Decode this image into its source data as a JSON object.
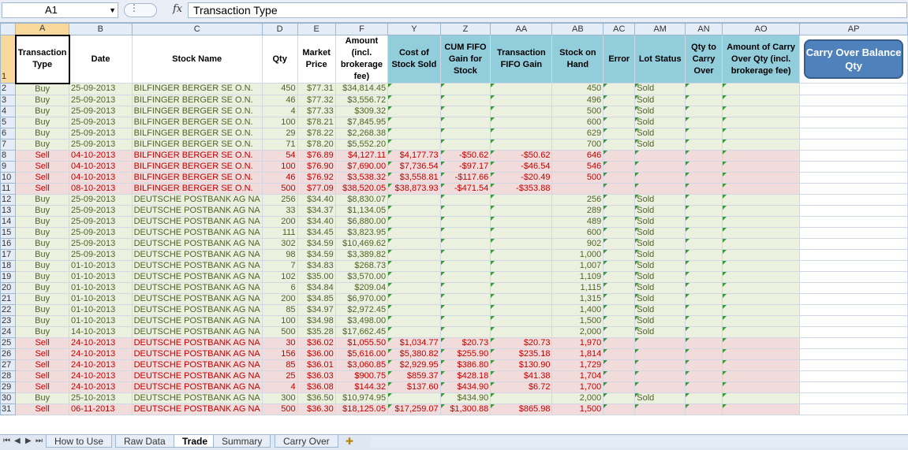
{
  "formula_bar": {
    "cell_ref": "A1",
    "fx": "fx",
    "formula": "Transaction Type"
  },
  "columns": [
    "A",
    "B",
    "C",
    "D",
    "E",
    "F",
    "Y",
    "Z",
    "AA",
    "AB",
    "AC",
    "AM",
    "AN",
    "AO",
    "AP"
  ],
  "header_row": {
    "row_num": "1",
    "cells": [
      "Transaction Type",
      "Date",
      "Stock Name",
      "Qty",
      "Market Price",
      "Amount (incl. brokerage fee)",
      "Cost of Stock Sold",
      "CUM FIFO Gain for Stock",
      "Transaction FIFO Gain",
      "Stock on Hand",
      "Error",
      "Lot Status",
      "Qty to Carry Over",
      "Amount of Carry Over Qty (incl. brokerage fee)"
    ],
    "button": "Carry Over Balance Qty"
  },
  "rows": [
    {
      "n": "2",
      "t": "Buy",
      "d": "25-09-2013",
      "s": "BILFINGER BERGER SE O.N.",
      "q": "450",
      "p": "$77.31",
      "a": "$34,814.45",
      "cs": "",
      "cum": "",
      "tg": "",
      "oh": "450",
      "l": "Sold"
    },
    {
      "n": "3",
      "t": "Buy",
      "d": "25-09-2013",
      "s": "BILFINGER BERGER SE O.N.",
      "q": "46",
      "p": "$77.32",
      "a": "$3,556.72",
      "cs": "",
      "cum": "",
      "tg": "",
      "oh": "496",
      "l": "Sold"
    },
    {
      "n": "4",
      "t": "Buy",
      "d": "25-09-2013",
      "s": "BILFINGER BERGER SE O.N.",
      "q": "4",
      "p": "$77.33",
      "a": "$309.32",
      "cs": "",
      "cum": "",
      "tg": "",
      "oh": "500",
      "l": "Sold"
    },
    {
      "n": "5",
      "t": "Buy",
      "d": "25-09-2013",
      "s": "BILFINGER BERGER SE O.N.",
      "q": "100",
      "p": "$78.21",
      "a": "$7,845.95",
      "cs": "",
      "cum": "",
      "tg": "",
      "oh": "600",
      "l": "Sold"
    },
    {
      "n": "6",
      "t": "Buy",
      "d": "25-09-2013",
      "s": "BILFINGER BERGER SE O.N.",
      "q": "29",
      "p": "$78.22",
      "a": "$2,268.38",
      "cs": "",
      "cum": "",
      "tg": "",
      "oh": "629",
      "l": "Sold"
    },
    {
      "n": "7",
      "t": "Buy",
      "d": "25-09-2013",
      "s": "BILFINGER BERGER SE O.N.",
      "q": "71",
      "p": "$78.20",
      "a": "$5,552.20",
      "cs": "",
      "cum": "",
      "tg": "",
      "oh": "700",
      "l": "Sold"
    },
    {
      "n": "8",
      "t": "Sell",
      "d": "04-10-2013",
      "s": "BILFINGER BERGER SE O.N.",
      "q": "54",
      "p": "$76.89",
      "a": "$4,127.11",
      "cs": "$4,177.73",
      "cum": "-$50.62",
      "tg": "-$50.62",
      "oh": "646",
      "l": ""
    },
    {
      "n": "9",
      "t": "Sell",
      "d": "04-10-2013",
      "s": "BILFINGER BERGER SE O.N.",
      "q": "100",
      "p": "$76.90",
      "a": "$7,690.00",
      "cs": "$7,736.54",
      "cum": "-$97.17",
      "tg": "-$46.54",
      "oh": "546",
      "l": ""
    },
    {
      "n": "10",
      "t": "Sell",
      "d": "04-10-2013",
      "s": "BILFINGER BERGER SE O.N.",
      "q": "46",
      "p": "$76.92",
      "a": "$3,538.32",
      "cs": "$3,558.81",
      "cum": "-$117.66",
      "tg": "-$20.49",
      "oh": "500",
      "l": ""
    },
    {
      "n": "11",
      "t": "Sell",
      "d": "08-10-2013",
      "s": "BILFINGER BERGER SE O.N.",
      "q": "500",
      "p": "$77.09",
      "a": "$38,520.05",
      "cs": "$38,873.93",
      "cum": "-$471.54",
      "tg": "-$353.88",
      "oh": "",
      "l": ""
    },
    {
      "n": "12",
      "t": "Buy",
      "d": "25-09-2013",
      "s": "DEUTSCHE POSTBANK AG NA",
      "q": "256",
      "p": "$34.40",
      "a": "$8,830.07",
      "cs": "",
      "cum": "",
      "tg": "",
      "oh": "256",
      "l": "Sold"
    },
    {
      "n": "13",
      "t": "Buy",
      "d": "25-09-2013",
      "s": "DEUTSCHE POSTBANK AG NA",
      "q": "33",
      "p": "$34.37",
      "a": "$1,134.05",
      "cs": "",
      "cum": "",
      "tg": "",
      "oh": "289",
      "l": "Sold"
    },
    {
      "n": "14",
      "t": "Buy",
      "d": "25-09-2013",
      "s": "DEUTSCHE POSTBANK AG NA",
      "q": "200",
      "p": "$34.40",
      "a": "$6,880.00",
      "cs": "",
      "cum": "",
      "tg": "",
      "oh": "489",
      "l": "Sold"
    },
    {
      "n": "15",
      "t": "Buy",
      "d": "25-09-2013",
      "s": "DEUTSCHE POSTBANK AG NA",
      "q": "111",
      "p": "$34.45",
      "a": "$3,823.95",
      "cs": "",
      "cum": "",
      "tg": "",
      "oh": "600",
      "l": "Sold"
    },
    {
      "n": "16",
      "t": "Buy",
      "d": "25-09-2013",
      "s": "DEUTSCHE POSTBANK AG NA",
      "q": "302",
      "p": "$34.59",
      "a": "$10,469.62",
      "cs": "",
      "cum": "",
      "tg": "",
      "oh": "902",
      "l": "Sold"
    },
    {
      "n": "17",
      "t": "Buy",
      "d": "25-09-2013",
      "s": "DEUTSCHE POSTBANK AG NA",
      "q": "98",
      "p": "$34.59",
      "a": "$3,389.82",
      "cs": "",
      "cum": "",
      "tg": "",
      "oh": "1,000",
      "l": "Sold"
    },
    {
      "n": "18",
      "t": "Buy",
      "d": "01-10-2013",
      "s": "DEUTSCHE POSTBANK AG NA",
      "q": "7",
      "p": "$34.83",
      "a": "$268.73",
      "cs": "",
      "cum": "",
      "tg": "",
      "oh": "1,007",
      "l": "Sold"
    },
    {
      "n": "19",
      "t": "Buy",
      "d": "01-10-2013",
      "s": "DEUTSCHE POSTBANK AG NA",
      "q": "102",
      "p": "$35.00",
      "a": "$3,570.00",
      "cs": "",
      "cum": "",
      "tg": "",
      "oh": "1,109",
      "l": "Sold"
    },
    {
      "n": "20",
      "t": "Buy",
      "d": "01-10-2013",
      "s": "DEUTSCHE POSTBANK AG NA",
      "q": "6",
      "p": "$34.84",
      "a": "$209.04",
      "cs": "",
      "cum": "",
      "tg": "",
      "oh": "1,115",
      "l": "Sold"
    },
    {
      "n": "21",
      "t": "Buy",
      "d": "01-10-2013",
      "s": "DEUTSCHE POSTBANK AG NA",
      "q": "200",
      "p": "$34.85",
      "a": "$6,970.00",
      "cs": "",
      "cum": "",
      "tg": "",
      "oh": "1,315",
      "l": "Sold"
    },
    {
      "n": "22",
      "t": "Buy",
      "d": "01-10-2013",
      "s": "DEUTSCHE POSTBANK AG NA",
      "q": "85",
      "p": "$34.97",
      "a": "$2,972.45",
      "cs": "",
      "cum": "",
      "tg": "",
      "oh": "1,400",
      "l": "Sold"
    },
    {
      "n": "23",
      "t": "Buy",
      "d": "01-10-2013",
      "s": "DEUTSCHE POSTBANK AG NA",
      "q": "100",
      "p": "$34.98",
      "a": "$3,498.00",
      "cs": "",
      "cum": "",
      "tg": "",
      "oh": "1,500",
      "l": "Sold"
    },
    {
      "n": "24",
      "t": "Buy",
      "d": "14-10-2013",
      "s": "DEUTSCHE POSTBANK AG NA",
      "q": "500",
      "p": "$35.28",
      "a": "$17,662.45",
      "cs": "",
      "cum": "",
      "tg": "",
      "oh": "2,000",
      "l": "Sold"
    },
    {
      "n": "25",
      "t": "Sell",
      "d": "24-10-2013",
      "s": "DEUTSCHE POSTBANK AG NA",
      "q": "30",
      "p": "$36.02",
      "a": "$1,055.50",
      "cs": "$1,034.77",
      "cum": "$20.73",
      "tg": "$20.73",
      "oh": "1,970",
      "l": ""
    },
    {
      "n": "26",
      "t": "Sell",
      "d": "24-10-2013",
      "s": "DEUTSCHE POSTBANK AG NA",
      "q": "156",
      "p": "$36.00",
      "a": "$5,616.00",
      "cs": "$5,380.82",
      "cum": "$255.90",
      "tg": "$235.18",
      "oh": "1,814",
      "l": ""
    },
    {
      "n": "27",
      "t": "Sell",
      "d": "24-10-2013",
      "s": "DEUTSCHE POSTBANK AG NA",
      "q": "85",
      "p": "$36.01",
      "a": "$3,060.85",
      "cs": "$2,929.95",
      "cum": "$386.80",
      "tg": "$130.90",
      "oh": "1,729",
      "l": ""
    },
    {
      "n": "28",
      "t": "Sell",
      "d": "24-10-2013",
      "s": "DEUTSCHE POSTBANK AG NA",
      "q": "25",
      "p": "$36.03",
      "a": "$900.75",
      "cs": "$859.37",
      "cum": "$428.18",
      "tg": "$41.38",
      "oh": "1,704",
      "l": ""
    },
    {
      "n": "29",
      "t": "Sell",
      "d": "24-10-2013",
      "s": "DEUTSCHE POSTBANK AG NA",
      "q": "4",
      "p": "$36.08",
      "a": "$144.32",
      "cs": "$137.60",
      "cum": "$434.90",
      "tg": "$6.72",
      "oh": "1,700",
      "l": ""
    },
    {
      "n": "30",
      "t": "Buy",
      "d": "25-10-2013",
      "s": "DEUTSCHE POSTBANK AG NA",
      "q": "300",
      "p": "$36.50",
      "a": "$10,974.95",
      "cs": "",
      "cum": "$434.90",
      "tg": "",
      "oh": "2,000",
      "l": "Sold"
    },
    {
      "n": "31",
      "t": "Sell",
      "d": "06-11-2013",
      "s": "DEUTSCHE POSTBANK AG NA",
      "q": "500",
      "p": "$36.30",
      "a": "$18,125.05",
      "cs": "$17,259.07",
      "cum": "$1,300.88",
      "tg": "$865.98",
      "oh": "1,500",
      "l": ""
    }
  ],
  "sheet_tabs": [
    "How to Use",
    "Raw Data",
    "Trade",
    "Summary",
    "Carry Over"
  ],
  "active_tab": "Trade",
  "colors": {
    "buy_bg": "#ebf1de",
    "sell_bg": "#f2dcdb",
    "header_blue": "#92cddc",
    "button": "#4f81bd"
  }
}
